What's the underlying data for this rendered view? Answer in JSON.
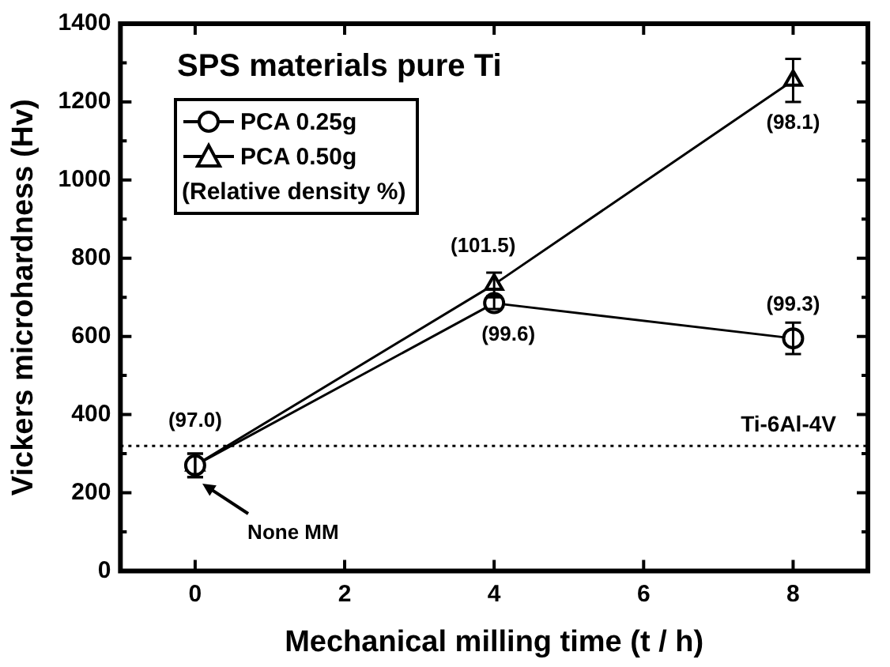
{
  "chart_data": {
    "type": "line",
    "title": "SPS materials pure Ti",
    "xlabel": "Mechanical milling time (t / h)",
    "ylabel": "Vickers microhardness (Hv)",
    "legend_title": "(Relative density %)",
    "x": [
      0,
      4,
      8
    ],
    "series": [
      {
        "name": "PCA 0.25g",
        "color": "#000000",
        "marker": "circle",
        "values": [
          270,
          685,
          595
        ],
        "errors": [
          30,
          15,
          40
        ]
      },
      {
        "name": "PCA 0.50g",
        "color": "#000000",
        "marker": "triangle",
        "values": [
          270,
          733,
          1255
        ],
        "errors": [
          30,
          30,
          55
        ]
      }
    ],
    "xlim": [
      -1,
      9
    ],
    "xticks": [
      0,
      2,
      4,
      6,
      8
    ],
    "ylim": [
      0,
      1400
    ],
    "yticks": [
      0,
      {
        "value": 100,
        "label": null
      },
      200,
      {
        "value": 300,
        "label": null
      },
      400,
      {
        "value": 500,
        "label": null
      },
      600,
      {
        "value": 700,
        "label": null
      },
      800,
      {
        "value": 900,
        "label": null
      },
      1000,
      {
        "value": 1100,
        "label": null
      },
      1200,
      {
        "value": 1300,
        "label": null
      },
      1400
    ],
    "ref_lines": [
      {
        "axis": "y",
        "value": 320,
        "label": "Ti-6Al-4V",
        "color": "#000000",
        "line_style": "dotted"
      }
    ],
    "annotations": [
      {
        "text": "(97.0)",
        "x": 0,
        "y": 270
      },
      {
        "text": "(101.5)",
        "x": 4,
        "y": 733
      },
      {
        "text": "(99.6)",
        "x": 4,
        "y": 685
      },
      {
        "text": "(99.3)",
        "x": 8,
        "y": 595
      },
      {
        "text": "(98.1)",
        "x": 8,
        "y": 1255
      },
      "None MM"
    ],
    "legend": "top left",
    "grid": false,
    "line_style": "solid"
  }
}
